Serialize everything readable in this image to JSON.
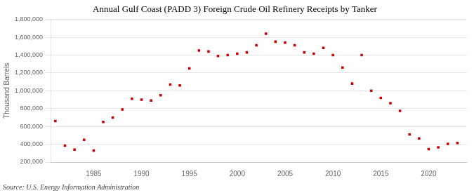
{
  "chart_data": {
    "type": "scatter",
    "title": "Annual Gulf Coast (PADD 3) Foreign Crude Oil Refinery Receipts by Tanker",
    "ylabel": "Thousand Barrels",
    "source": "Source: U.S. Energy Information Administration",
    "x": [
      1981,
      1982,
      1983,
      1984,
      1985,
      1986,
      1987,
      1988,
      1989,
      1990,
      1991,
      1992,
      1993,
      1994,
      1995,
      1996,
      1997,
      1998,
      1999,
      2000,
      2001,
      2002,
      2003,
      2004,
      2005,
      2006,
      2007,
      2008,
      2009,
      2010,
      2011,
      2012,
      2013,
      2014,
      2015,
      2016,
      2017,
      2018,
      2019,
      2020,
      2021,
      2022,
      2023
    ],
    "values": [
      660000,
      385000,
      340000,
      450000,
      330000,
      650000,
      700000,
      790000,
      910000,
      900000,
      890000,
      950000,
      1070000,
      1060000,
      1250000,
      1450000,
      1440000,
      1390000,
      1400000,
      1415000,
      1430000,
      1510000,
      1640000,
      1550000,
      1540000,
      1510000,
      1430000,
      1415000,
      1480000,
      1400000,
      1260000,
      1080000,
      1400000,
      1000000,
      920000,
      860000,
      775000,
      510000,
      465000,
      345000,
      365000,
      405000,
      415000
    ],
    "color": "#cc0000",
    "marker": "square",
    "xlim": [
      1980.5,
      2024
    ],
    "xticks": [
      1985,
      1990,
      1995,
      2000,
      2005,
      2010,
      2015,
      2020
    ],
    "ylim": [
      200000,
      1800000
    ],
    "yticks": [
      {
        "value": 200000,
        "label": "200,000"
      },
      {
        "value": 400000,
        "label": "400,000"
      },
      {
        "value": 600000,
        "label": "600,000"
      },
      {
        "value": 800000,
        "label": "800,000"
      },
      {
        "value": 1000000,
        "label": "1,000,000"
      },
      {
        "value": 1200000,
        "label": "1,200,000"
      },
      {
        "value": 1400000,
        "label": "1,400,000"
      },
      {
        "value": 1600000,
        "label": "1,600,000"
      },
      {
        "value": 1800000,
        "label": "1,800,000"
      }
    ],
    "grid": "y"
  }
}
